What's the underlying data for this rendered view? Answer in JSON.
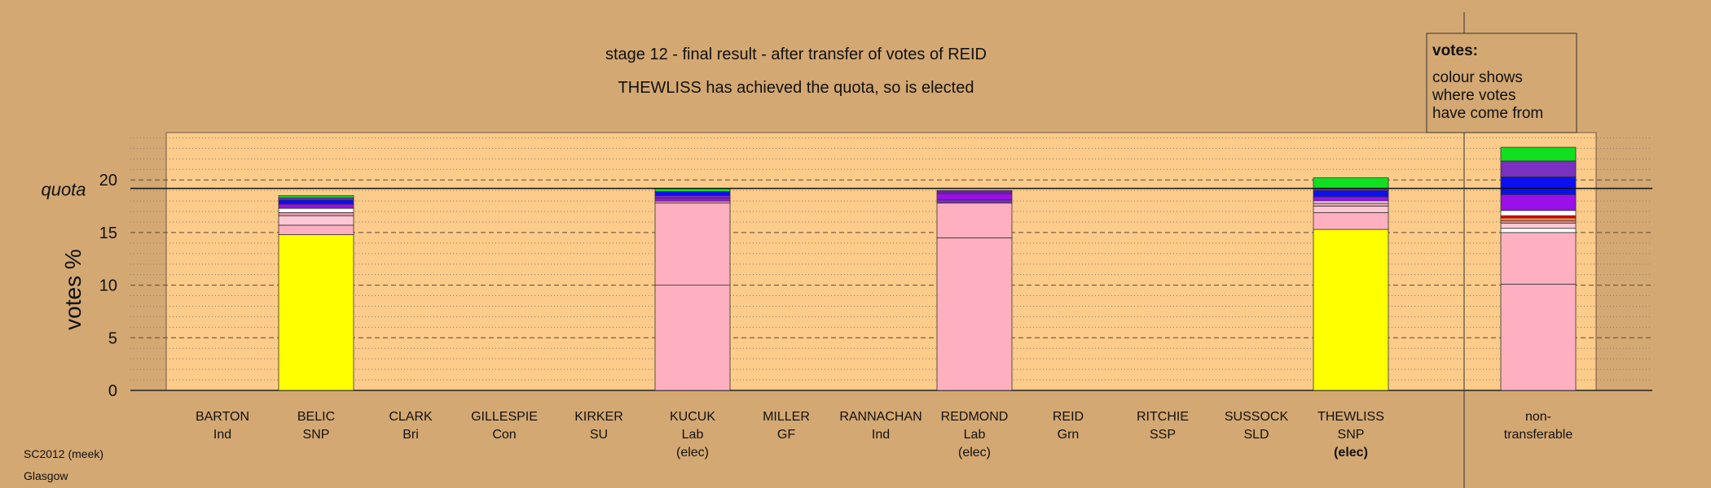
{
  "chart_data": {
    "type": "bar",
    "stacked": true,
    "title": "stage 12 - final result - after transfer of votes of REID",
    "subtitle": "THEWLISS has achieved the quota, so is elected",
    "ylabel": "votes %",
    "quota_label": "quota",
    "quota": 19.2,
    "ylim": [
      0,
      24.5
    ],
    "yticks": [
      0,
      5,
      10,
      15,
      20
    ],
    "grid": "dotted minor lines every 1%, dashed major lines every 5%",
    "legend": {
      "position": "top-right",
      "title": "votes:",
      "lines": [
        "colour shows",
        "where votes",
        "have come from"
      ]
    },
    "candidates": [
      {
        "name": "BARTON",
        "party": "Ind",
        "status": "",
        "segments": []
      },
      {
        "name": "BELIC",
        "party": "SNP",
        "status": "",
        "segments": [
          {
            "value": 14.8,
            "color": "#ffff00"
          },
          {
            "value": 0.9,
            "color": "#ffb0c0"
          },
          {
            "value": 0.9,
            "color": "#ffc8d4"
          },
          {
            "value": 0.3,
            "color": "#e89aa8"
          },
          {
            "value": 0.4,
            "color": "#ffffff"
          },
          {
            "value": 0.4,
            "color": "#9a10e8"
          },
          {
            "value": 0.4,
            "color": "#0a10f0"
          },
          {
            "value": 0.2,
            "color": "#7a30c0"
          },
          {
            "value": 0.2,
            "color": "#10e020"
          }
        ]
      },
      {
        "name": "CLARK",
        "party": "Bri",
        "status": "",
        "segments": []
      },
      {
        "name": "GILLESPIE",
        "party": "Con",
        "status": "",
        "segments": []
      },
      {
        "name": "KIRKER",
        "party": "SU",
        "status": "",
        "segments": []
      },
      {
        "name": "KUCUK",
        "party": "Lab",
        "status": "(elec)",
        "segments": [
          {
            "value": 10.0,
            "color": "#ffb0c0"
          },
          {
            "value": 7.8,
            "color": "#ffb0c0"
          },
          {
            "value": 0.2,
            "color": "#e89aa8"
          },
          {
            "value": 0.3,
            "color": "#9a10e8"
          },
          {
            "value": 0.2,
            "color": "#7a30c0"
          },
          {
            "value": 0.4,
            "color": "#0a10f0"
          },
          {
            "value": 0.3,
            "color": "#10e020"
          }
        ]
      },
      {
        "name": "MILLER",
        "party": "GF",
        "status": "",
        "segments": []
      },
      {
        "name": "RANNACHAN",
        "party": "Ind",
        "status": "",
        "segments": []
      },
      {
        "name": "REDMOND",
        "party": "Lab",
        "status": "(elec)",
        "segments": [
          {
            "value": 14.5,
            "color": "#ffb0c0"
          },
          {
            "value": 3.3,
            "color": "#ffb0c0"
          },
          {
            "value": 0.3,
            "color": "#7a30c0"
          },
          {
            "value": 0.6,
            "color": "#9a10e8"
          },
          {
            "value": 0.3,
            "color": "#6a20b0"
          }
        ]
      },
      {
        "name": "REID",
        "party": "Grn",
        "status": "",
        "segments": []
      },
      {
        "name": "RITCHIE",
        "party": "SSP",
        "status": "",
        "segments": []
      },
      {
        "name": "SUSSOCK",
        "party": "SLD",
        "status": "",
        "segments": []
      },
      {
        "name": "THEWLISS",
        "party": "SNP",
        "status": "(elec)",
        "status_bold": true,
        "segments": [
          {
            "value": 15.3,
            "color": "#ffff00"
          },
          {
            "value": 1.6,
            "color": "#ffb0c0"
          },
          {
            "value": 0.6,
            "color": "#ffc8d4"
          },
          {
            "value": 0.3,
            "color": "#e89aa8"
          },
          {
            "value": 0.2,
            "color": "#ffffff"
          },
          {
            "value": 0.4,
            "color": "#9a10e8"
          },
          {
            "value": 0.6,
            "color": "#0a10f0"
          },
          {
            "value": 0.2,
            "color": "#7a30c0"
          },
          {
            "value": 1.0,
            "color": "#10e020"
          }
        ]
      }
    ],
    "nontransferable": {
      "label_line1": "non-",
      "label_line2": "transferable",
      "segments": [
        {
          "value": 10.1,
          "color": "#ffb0c0"
        },
        {
          "value": 4.9,
          "color": "#ffb0c0"
        },
        {
          "value": 0.4,
          "color": "#ffffff"
        },
        {
          "value": 0.5,
          "color": "#ffc8d4"
        },
        {
          "value": 0.2,
          "color": "#e89aa8"
        },
        {
          "value": 0.3,
          "color": "#ff8040"
        },
        {
          "value": 0.2,
          "color": "#ff0000"
        },
        {
          "value": 0.5,
          "color": "#ffffff"
        },
        {
          "value": 1.5,
          "color": "#9a10e8"
        },
        {
          "value": 1.7,
          "color": "#0a10f0"
        },
        {
          "value": 1.5,
          "color": "#7a30c0"
        },
        {
          "value": 1.3,
          "color": "#10e020"
        }
      ]
    }
  },
  "footer": {
    "line1": "SC2012 (meek)",
    "line2": "Glasgow"
  },
  "colors": {
    "background": "#d4a872",
    "plot_panel": "#fdcb8a",
    "legend_box": "#d4a872"
  }
}
